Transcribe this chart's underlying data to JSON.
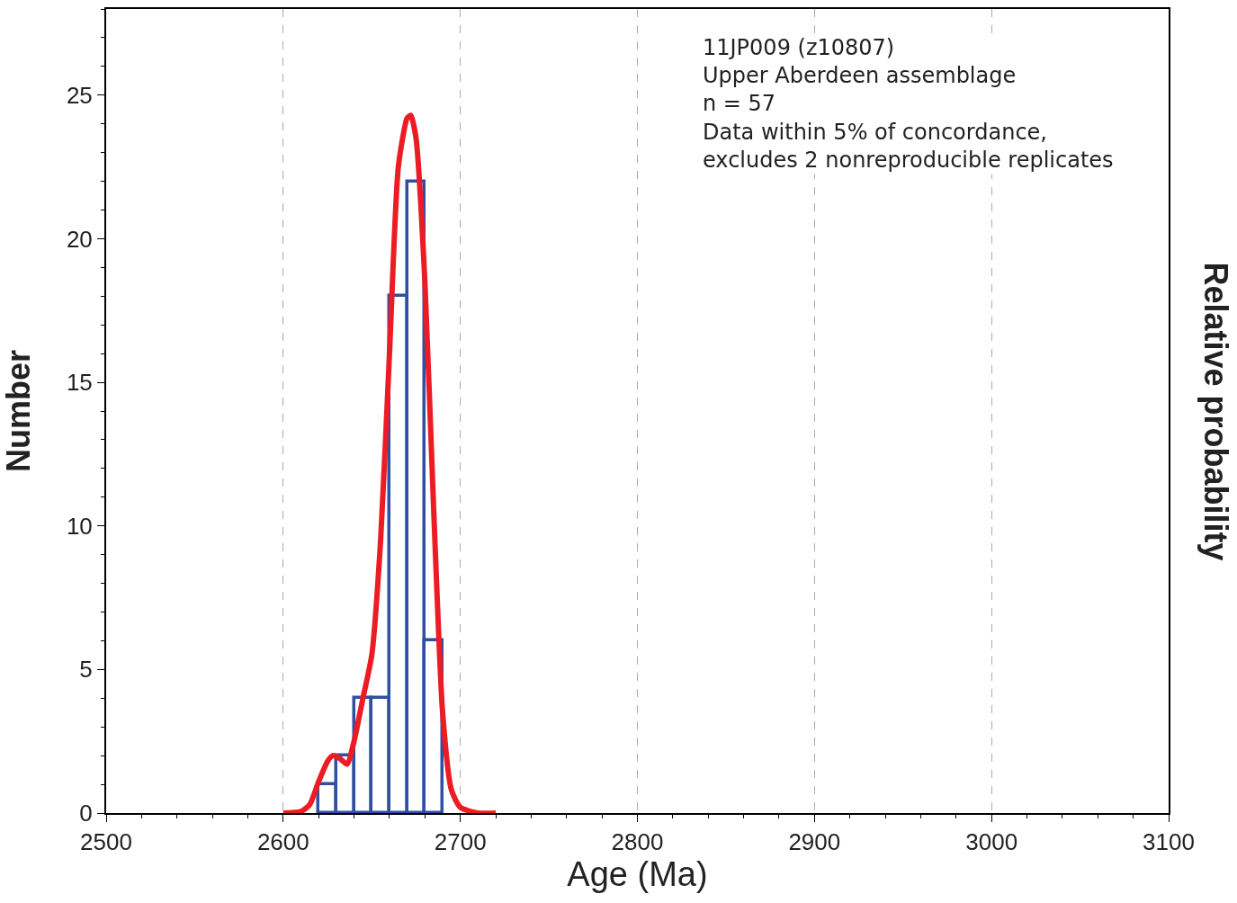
{
  "chart_data": {
    "type": "histogram",
    "xlabel": "Age (Ma)",
    "ylabel": "Number",
    "y2label": "Relative probability",
    "annotations": [
      "11JP009 (z10807)\nUpper Aberdeen assemblage\nn = 57\nData within 5% of concordance,\nexcludes 2 nonreproducible replicates"
    ],
    "series": [
      {
        "type": "histogram",
        "bins": [
          2620,
          2630,
          2640,
          2650,
          2660,
          2670,
          2680,
          2690
        ],
        "values": [
          1,
          2,
          4,
          4,
          18,
          22,
          6
        ],
        "color": "#2f4fa2"
      },
      {
        "type": "line",
        "color": "#ec1c24",
        "x": [
          2600,
          2610,
          2615,
          2620,
          2625,
          2628,
          2632,
          2636,
          2640,
          2645,
          2650,
          2655,
          2660,
          2665,
          2670,
          2672,
          2675,
          2680,
          2685,
          2690,
          2695,
          2700,
          2710,
          2720
        ],
        "values": [
          0,
          0.05,
          0.3,
          1.1,
          1.8,
          2.0,
          1.9,
          1.7,
          2.5,
          4.0,
          5.5,
          9.5,
          16,
          22.5,
          24.2,
          24.3,
          23.5,
          18.5,
          10.5,
          3.5,
          0.8,
          0.2,
          0,
          0
        ]
      }
    ],
    "xlim": [
      2500,
      3100
    ],
    "xticks": [
      2500,
      2600,
      2700,
      2800,
      2900,
      3000,
      3100
    ],
    "ylim": [
      0,
      28
    ],
    "yticks": [
      0,
      5,
      10,
      15,
      20,
      25
    ],
    "grid": "x"
  }
}
